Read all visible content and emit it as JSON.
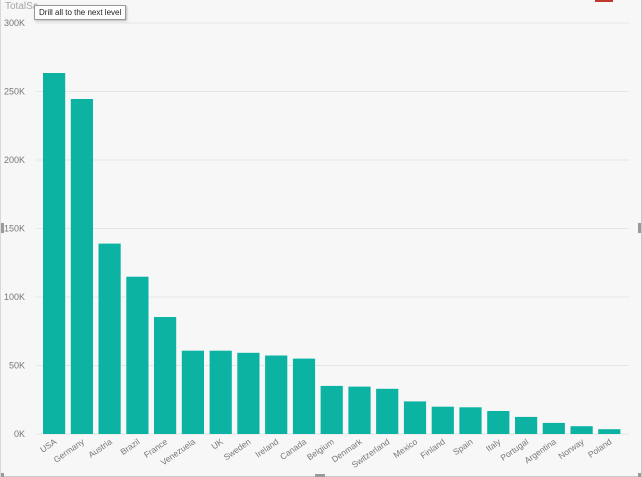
{
  "visual": {
    "title": "TotalSa",
    "tooltip": "Drill all to the next level"
  },
  "colors": {
    "bar": "#0cb3a3",
    "gridline": "#e6e6e6",
    "accent_marker": "#c0392b"
  },
  "chart_data": {
    "type": "bar",
    "categories": [
      "USA",
      "Germany",
      "Austria",
      "Brazil",
      "France",
      "Venezuela",
      "UK",
      "Sweden",
      "Ireland",
      "Canada",
      "Belgium",
      "Denmark",
      "Switzerland",
      "Mexico",
      "Finland",
      "Spain",
      "Italy",
      "Portugal",
      "Argentina",
      "Norway",
      "Poland"
    ],
    "values": [
      263500,
      244500,
      139000,
      114800,
      85400,
      60800,
      60800,
      59300,
      57300,
      55000,
      35100,
      34600,
      33000,
      23800,
      19900,
      19500,
      16800,
      12500,
      8100,
      5700,
      3500
    ],
    "y_ticks": [
      0,
      50000,
      100000,
      150000,
      200000,
      250000,
      300000
    ],
    "y_tick_labels": [
      "0K",
      "50K",
      "100K",
      "150K",
      "200K",
      "250K",
      "300K"
    ],
    "ylim": [
      0,
      300000
    ],
    "grid": true,
    "title": "",
    "xlabel": "",
    "ylabel": ""
  }
}
